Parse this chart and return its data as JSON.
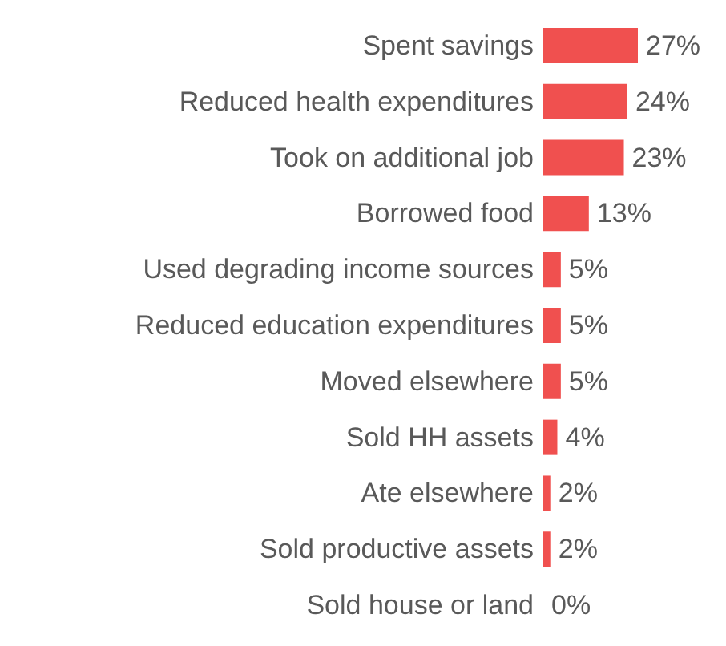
{
  "chart_data": {
    "type": "bar",
    "orientation": "horizontal",
    "categories": [
      "Spent savings",
      "Reduced health expenditures",
      "Took on additional job",
      "Borrowed food",
      "Used degrading income sources",
      "Reduced education expenditures",
      "Moved elsewhere",
      "Sold HH assets",
      "Ate elsewhere",
      "Sold productive assets",
      "Sold house or land"
    ],
    "values": [
      27,
      24,
      23,
      13,
      5,
      5,
      5,
      4,
      2,
      2,
      0
    ],
    "value_labels": [
      "27%",
      "24%",
      "23%",
      "13%",
      "5%",
      "5%",
      "5%",
      "4%",
      "2%",
      "2%",
      "0%"
    ],
    "color": "#f0504f"
  }
}
